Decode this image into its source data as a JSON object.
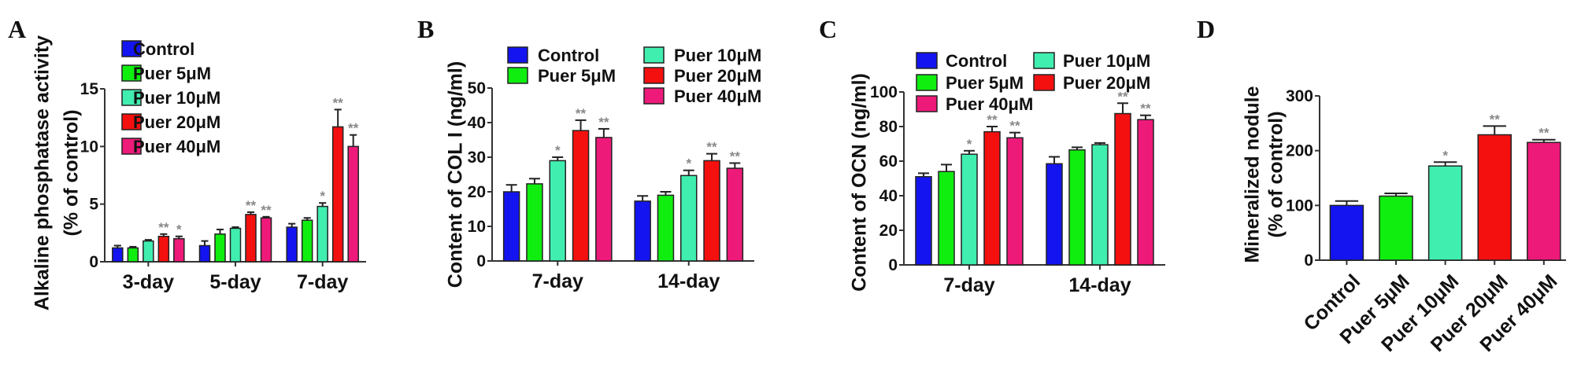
{
  "colors": {
    "Control": "#1414f0",
    "Puer 5μM": "#10ee10",
    "Puer 10μM": "#40eeb0",
    "Puer 20μM": "#f51010",
    "Puer 40μM": "#ee1a7a"
  },
  "chart_data": [
    {
      "panel": "A",
      "type": "bar",
      "ylabel": [
        "Alkaline phosphatase activity",
        "(% of control)"
      ],
      "ylim": [
        0,
        15
      ],
      "yticks": [
        "0",
        "5",
        "10",
        "15"
      ],
      "categories": [
        "3-day",
        "5-day",
        "7-day"
      ],
      "legend": "top-left",
      "series": [
        {
          "name": "Control",
          "values": [
            1.2,
            1.4,
            3.0
          ],
          "errors": [
            0.2,
            0.4,
            0.3
          ],
          "stars": [
            "",
            "",
            ""
          ]
        },
        {
          "name": "Puer 5μM",
          "values": [
            1.2,
            2.4,
            3.6
          ],
          "errors": [
            0.1,
            0.4,
            0.2
          ],
          "stars": [
            "",
            "",
            ""
          ]
        },
        {
          "name": "Puer 10μM",
          "values": [
            1.8,
            2.9,
            4.8
          ],
          "errors": [
            0.1,
            0.1,
            0.3
          ],
          "stars": [
            "",
            "",
            "*"
          ]
        },
        {
          "name": "Puer 20μM",
          "values": [
            2.2,
            4.1,
            11.7
          ],
          "errors": [
            0.2,
            0.2,
            1.5
          ],
          "stars": [
            "**",
            "**",
            "**"
          ]
        },
        {
          "name": "Puer 40μM",
          "values": [
            2.0,
            3.8,
            10.0
          ],
          "errors": [
            0.2,
            0.1,
            1.0
          ],
          "stars": [
            "*",
            "**",
            "**"
          ]
        }
      ]
    },
    {
      "panel": "B",
      "type": "bar",
      "ylabel": [
        "Content of  COL I (ng/ml)"
      ],
      "ylim": [
        0,
        50
      ],
      "yticks": [
        "0",
        "10",
        "20",
        "30",
        "40",
        "50"
      ],
      "categories": [
        "7-day",
        "14-day"
      ],
      "legend": "top",
      "series": [
        {
          "name": "Control",
          "values": [
            20.0,
            17.3
          ],
          "errors": [
            2.0,
            1.5
          ],
          "stars": [
            "",
            ""
          ]
        },
        {
          "name": "Puer 5μM",
          "values": [
            22.3,
            19.0
          ],
          "errors": [
            1.5,
            1.0
          ],
          "stars": [
            "",
            ""
          ]
        },
        {
          "name": "Puer 10μM",
          "values": [
            29.0,
            24.7
          ],
          "errors": [
            1.0,
            1.5
          ],
          "stars": [
            "*",
            "*"
          ]
        },
        {
          "name": "Puer 20μM",
          "values": [
            37.7,
            29.0
          ],
          "errors": [
            3.0,
            2.0
          ],
          "stars": [
            "**",
            "**"
          ]
        },
        {
          "name": "Puer 40μM",
          "values": [
            35.7,
            26.8
          ],
          "errors": [
            2.5,
            1.5
          ],
          "stars": [
            "**",
            "**"
          ]
        }
      ]
    },
    {
      "panel": "C",
      "type": "bar",
      "ylabel": [
        "Content of  OCN (ng/ml)"
      ],
      "ylim": [
        0,
        100
      ],
      "yticks": [
        "0",
        "20",
        "40",
        "60",
        "80",
        "100"
      ],
      "categories": [
        "7-day",
        "14-day"
      ],
      "legend": "top",
      "series": [
        {
          "name": "Control",
          "values": [
            51.0,
            58.5
          ],
          "errors": [
            2.0,
            4.0
          ],
          "stars": [
            "",
            ""
          ]
        },
        {
          "name": "Puer 5μM",
          "values": [
            54.0,
            66.5
          ],
          "errors": [
            4.0,
            1.5
          ],
          "stars": [
            "",
            ""
          ]
        },
        {
          "name": "Puer 10μM",
          "values": [
            64.0,
            69.5
          ],
          "errors": [
            2.0,
            1.0
          ],
          "stars": [
            "*",
            ""
          ]
        },
        {
          "name": "Puer 20μM",
          "values": [
            77.0,
            87.5
          ],
          "errors": [
            3.0,
            6.0
          ],
          "stars": [
            "**",
            "**"
          ]
        },
        {
          "name": "Puer 40μM",
          "values": [
            73.5,
            84.0
          ],
          "errors": [
            3.0,
            2.5
          ],
          "stars": [
            "**",
            "**"
          ]
        }
      ]
    },
    {
      "panel": "D",
      "type": "bar",
      "ylabel": [
        "Mineralized nodule",
        "(% of control)"
      ],
      "ylim": [
        0,
        300
      ],
      "yticks": [
        "0",
        "100",
        "200",
        "300"
      ],
      "categories": [
        "Control",
        "Puer 5μM",
        "Puer 10μM",
        "Puer 20μM",
        "Puer 40μM"
      ],
      "values": [
        100,
        117,
        172,
        229,
        215
      ],
      "errors": [
        8,
        5,
        7,
        16,
        5
      ],
      "stars": [
        "",
        "",
        "*",
        "**",
        "**"
      ]
    }
  ]
}
